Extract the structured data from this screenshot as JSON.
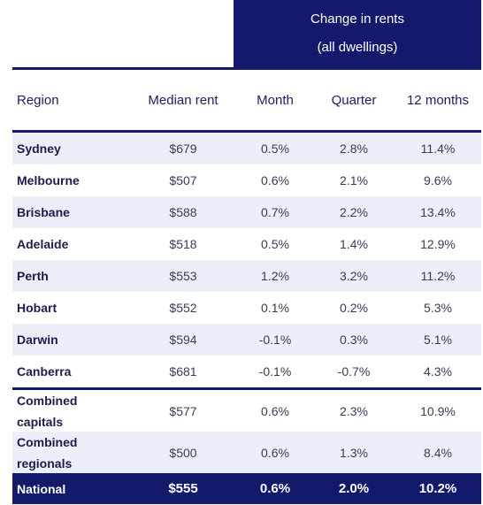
{
  "group_header": {
    "line1": "Change in rents",
    "line2": "(all dwellings)"
  },
  "columns": {
    "region": "Region",
    "median": "Median rent",
    "month": "Month",
    "quarter": "Quarter",
    "year": "12 months"
  },
  "rows": [
    {
      "region": "Sydney",
      "median": "$679",
      "month": "0.5%",
      "quarter": "2.8%",
      "year": "11.4%"
    },
    {
      "region": "Melbourne",
      "median": "$507",
      "month": "0.6%",
      "quarter": "2.1%",
      "year": "9.6%"
    },
    {
      "region": "Brisbane",
      "median": "$588",
      "month": "0.7%",
      "quarter": "2.2%",
      "year": "13.4%"
    },
    {
      "region": "Adelaide",
      "median": "$518",
      "month": "0.5%",
      "quarter": "1.4%",
      "year": "12.9%"
    },
    {
      "region": "Perth",
      "median": "$553",
      "month": "1.2%",
      "quarter": "3.2%",
      "year": "11.2%"
    },
    {
      "region": "Hobart",
      "median": "$552",
      "month": "0.1%",
      "quarter": "0.2%",
      "year": "5.3%"
    },
    {
      "region": "Darwin",
      "median": "$594",
      "month": "-0.1%",
      "quarter": "0.3%",
      "year": "5.1%"
    },
    {
      "region": "Canberra",
      "median": "$681",
      "month": "-0.1%",
      "quarter": "-0.7%",
      "year": "4.3%"
    }
  ],
  "combined": [
    {
      "region_line1": "Combined",
      "region_line2": "capitals",
      "median": "$577",
      "month": "0.6%",
      "quarter": "2.3%",
      "year": "10.9%"
    },
    {
      "region_line1": "Combined",
      "region_line2": "regionals",
      "median": "$500",
      "month": "0.6%",
      "quarter": "1.3%",
      "year": "8.4%"
    }
  ],
  "national": {
    "region": "National",
    "median": "$555",
    "month": "0.6%",
    "quarter": "2.0%",
    "year": "10.2%"
  },
  "colors": {
    "navy": "#131a6b",
    "shade": "#eceefa",
    "text": "#1c1c5e"
  }
}
